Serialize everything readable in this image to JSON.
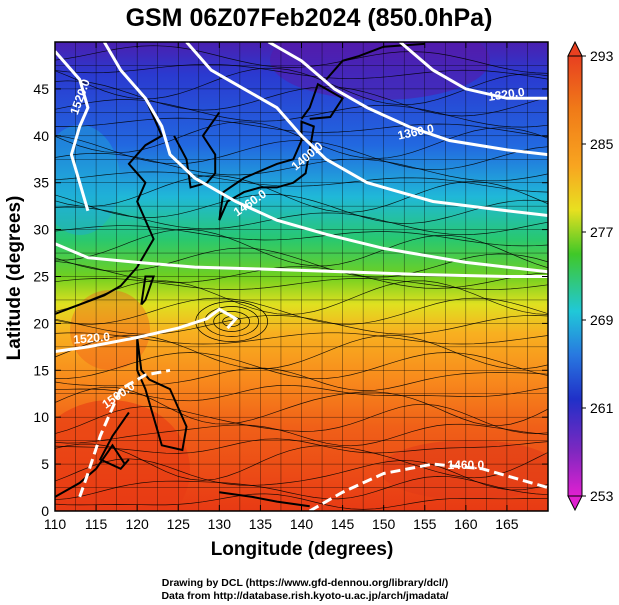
{
  "title": "GSM 06Z07Feb2024 (850.0hPa)",
  "xlabel": "Longitude (degrees)",
  "ylabel": "Latitude  (degrees)",
  "x_ticks": [
    "110",
    "115",
    "120",
    "125",
    "130",
    "135",
    "140",
    "145",
    "150",
    "155",
    "160",
    "165"
  ],
  "y_ticks": [
    "0",
    "5",
    "10",
    "15",
    "20",
    "25",
    "30",
    "35",
    "40",
    "45"
  ],
  "colorbar_ticks": [
    "253",
    "261",
    "269",
    "277",
    "285",
    "293"
  ],
  "contour_labels": [
    "1520.0",
    "1460.0",
    "1400.0",
    "1360.0",
    "1320.0",
    "1520.0",
    "1500.0",
    "1460.0"
  ],
  "credit_line1": "Drawing by DCL (https://www.gfd-dennou.org/library/dcl/)",
  "credit_line2": "Data from http://database.rish.kyoto-u.ac.jp/arch/jmadata/",
  "colors": {
    "warm": "#e8421a",
    "orange": "#f59520",
    "yellow": "#e8e020",
    "green": "#35c22a",
    "cyan": "#20c8d8",
    "blue": "#1e50d8",
    "purple": "#8030c0",
    "magenta": "#e020d0"
  },
  "chart_data": {
    "type": "map",
    "x_range": [
      110,
      170
    ],
    "y_range": [
      0,
      50
    ],
    "colorbar_range": [
      253,
      293
    ],
    "variable": "temperature (K) at 850.0hPa",
    "contour_variable": "geopotential height",
    "contours": [
      1320.0,
      1360.0,
      1400.0,
      1460.0,
      1500.0,
      1520.0
    ]
  }
}
